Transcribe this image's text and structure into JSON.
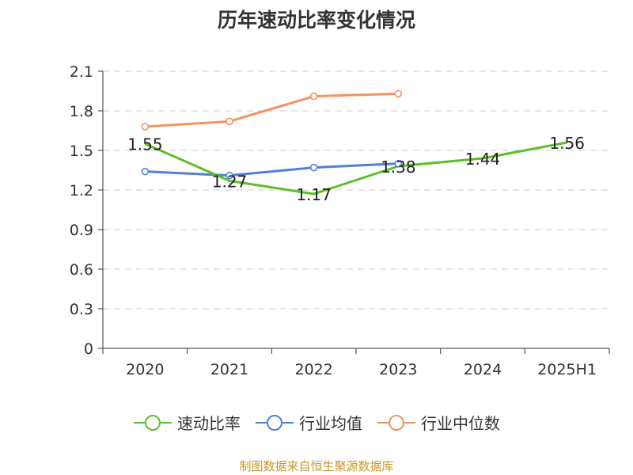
{
  "chart_data": {
    "type": "line",
    "title": "历年速动比率变化情况",
    "categories": [
      "2020",
      "2021",
      "2022",
      "2023",
      "2024",
      "2025H1"
    ],
    "ylim": [
      0,
      2.1
    ],
    "yticks": [
      "0",
      "0.3",
      "0.6",
      "0.9",
      "1.2",
      "1.5",
      "1.8",
      "2.1"
    ],
    "grid": true,
    "legend_position": "bottom",
    "series": [
      {
        "name": "速动比率",
        "color": "#5bbf2a",
        "values": [
          1.55,
          1.27,
          1.17,
          1.38,
          1.44,
          1.56
        ],
        "labels": [
          "1.55",
          "1.27",
          "1.17",
          "1.38",
          "1.44",
          "1.56"
        ],
        "show_labels": true
      },
      {
        "name": "行业均值",
        "color": "#4f80d8",
        "values": [
          1.34,
          1.31,
          1.37,
          1.4,
          null,
          null
        ],
        "show_labels": false
      },
      {
        "name": "行业中位数",
        "color": "#f4935c",
        "values": [
          1.68,
          1.72,
          1.91,
          1.93,
          null,
          null
        ],
        "show_labels": false
      }
    ]
  },
  "source": "制图数据来自恒生聚源数据库"
}
